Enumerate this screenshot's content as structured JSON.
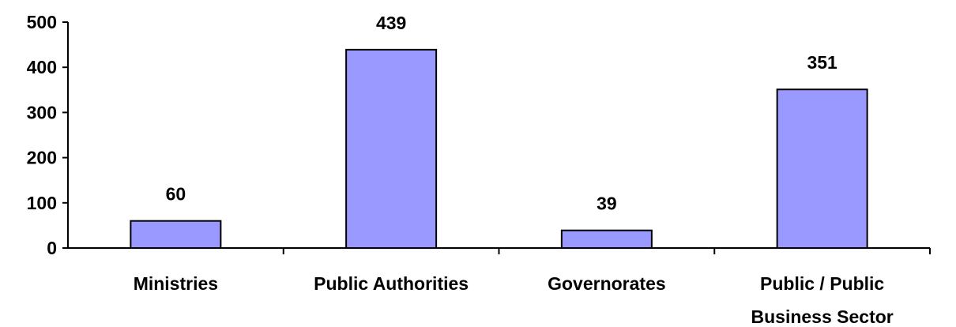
{
  "chart_data": {
    "type": "bar",
    "categories": [
      [
        "Ministries"
      ],
      [
        "Public Authorities"
      ],
      [
        "Governorates"
      ],
      [
        "Public / Public",
        "Business Sector"
      ]
    ],
    "values": [
      60,
      439,
      39,
      351
    ],
    "data_labels": [
      "60",
      "439",
      "39",
      "351"
    ],
    "y_ticks": [
      0,
      100,
      200,
      300,
      400,
      500
    ],
    "y_tick_labels": [
      "0",
      "100",
      "200",
      "300",
      "400",
      "500"
    ],
    "ylim": [
      0,
      500
    ],
    "title": "",
    "xlabel": "",
    "ylabel": "",
    "grid": false,
    "legend": "none",
    "colors": {
      "bar_fill": "#9999ff",
      "bar_stroke": "#000000",
      "axis": "#000000",
      "text": "#000000"
    }
  }
}
